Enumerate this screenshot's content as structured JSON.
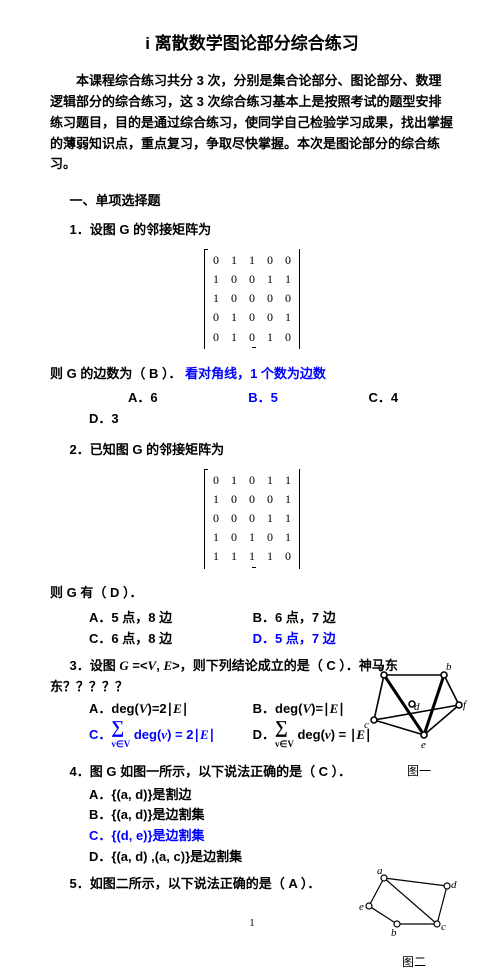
{
  "title": "i 离散数学图论部分综合练习",
  "intro": "本课程综合练习共分 3 次，分别是集合论部分、图论部分、数理逻辑部分的综合练习，这 3 次综合练习基本上是按照考试的题型安排练习题目，目的是通过综合练习，使同学自己检验学习成果，找出掌握的薄弱知识点，重点复习，争取尽快掌握。本次是图论部分的综合练习。",
  "section1": "一、单项选择题",
  "q1": {
    "stem": "1．设图 G 的邻接矩阵为",
    "line": "则 G 的边数为（  B  ）．",
    "hint": "看对角线，1 个数为边数",
    "opts": {
      "a": "A．6",
      "b": "B．5",
      "c": "C．4",
      "d": "D．3"
    },
    "matrix": [
      [
        0,
        1,
        1,
        0,
        0
      ],
      [
        1,
        0,
        0,
        1,
        1
      ],
      [
        1,
        0,
        0,
        0,
        0
      ],
      [
        0,
        1,
        0,
        0,
        1
      ],
      [
        0,
        1,
        0,
        1,
        0
      ]
    ]
  },
  "q2": {
    "stem": "2．已知图 G 的邻接矩阵为",
    "line": "则 G 有（  D    ）．",
    "opts": {
      "a": "A．5 点，8 边",
      "b": "B．6 点，7 边",
      "c": "C．6 点，8 边",
      "d": "D．5 点，7 边"
    },
    "matrix": [
      [
        0,
        1,
        0,
        1,
        1
      ],
      [
        1,
        0,
        0,
        0,
        1
      ],
      [
        0,
        0,
        0,
        1,
        1
      ],
      [
        1,
        0,
        1,
        0,
        1
      ],
      [
        1,
        1,
        1,
        1,
        0
      ]
    ]
  },
  "q3": {
    "stem": "3．设图 G =<V, E>，则下列结论成立的是（  C  ）．神马东东？？？？？",
    "opts": {
      "a": "A．deg(V)=2∣E∣",
      "b": "B．deg(V)=∣E∣",
      "c_pre": "C．",
      "c_eq_rhs": "= 2∣E∣",
      "d_pre": "D．",
      "d_eq_rhs": "= ∣E∣",
      "sum_label": "deg(v)",
      "sum_sub": "v∈V"
    }
  },
  "q4": {
    "stem": "4．图 G 如图一所示，以下说法正确的是（  C  ）．",
    "opts": {
      "a": "A．{(a, d)}是割边",
      "b": "B．{(a, d)}是边割集",
      "c": "C．{(d, e)}是边割集",
      "d": "D．{(a, d) ,(a, c)}是边割集"
    },
    "figcap": "图一",
    "nodes": {
      "a": "a",
      "b": "b",
      "c": "c",
      "d": "d",
      "e": "e",
      "f": "f"
    }
  },
  "q5": {
    "stem": "5．如图二所示，以下说法正确的是（  A  ）．",
    "figcap": "图二",
    "nodes": {
      "a": "a",
      "b": "b",
      "c": "c",
      "d": "d",
      "e": "e"
    }
  },
  "pagenum": "1",
  "style": {
    "text_color": "#000000",
    "blue": "#0000ff",
    "font_body": "SimSun",
    "font_bold": "SimHei",
    "bg": "#ffffff",
    "fig_node_radius": 3
  }
}
